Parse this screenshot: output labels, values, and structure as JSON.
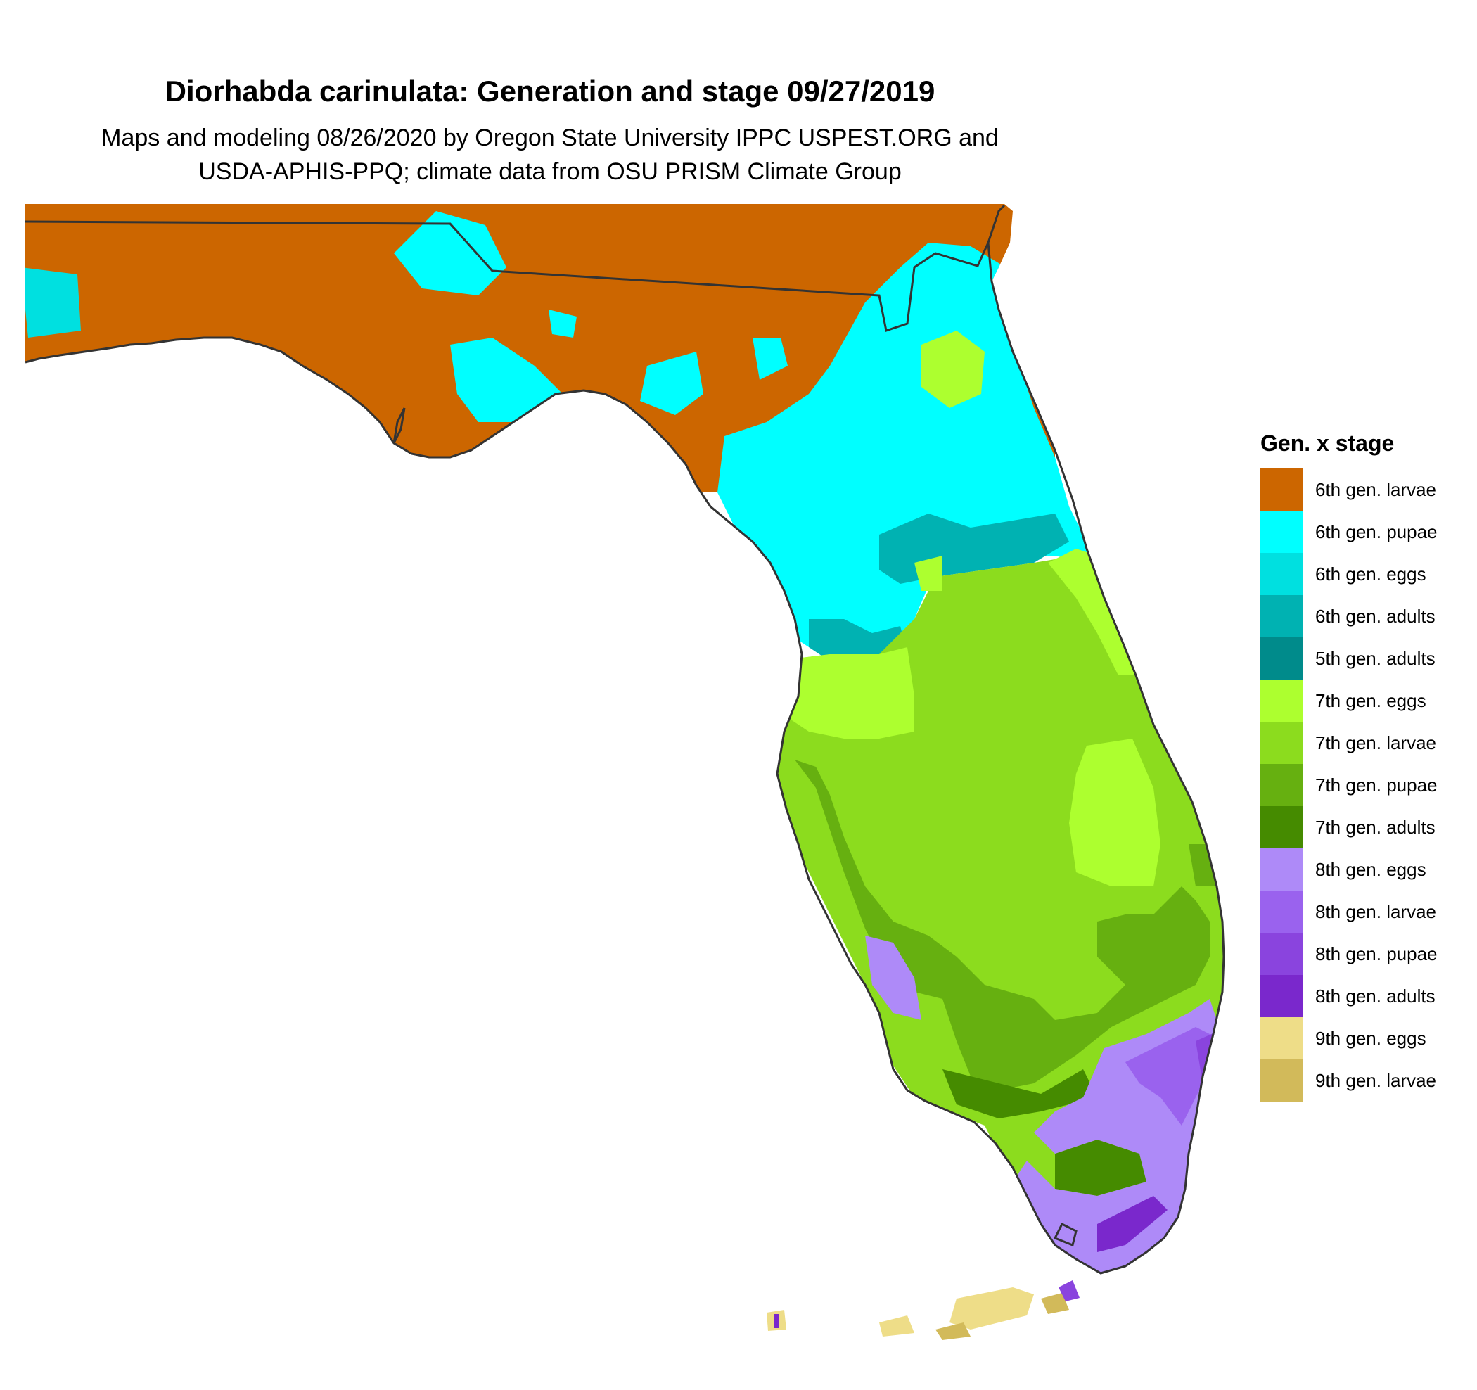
{
  "title": "Diorhabda carinulata: Generation and stage 09/27/2019",
  "subtitle_lines": [
    "Maps and modeling 08/26/2020 by Oregon State University IPPC USPEST.ORG and",
    "USDA-APHIS-PPQ; climate data from OSU PRISM Climate Group"
  ],
  "legend": {
    "title": "Gen. x stage",
    "items": [
      {
        "label": "6th gen. larvae",
        "color": "#CC6600"
      },
      {
        "label": "6th gen. pupae",
        "color": "#00FFFF"
      },
      {
        "label": "6th gen. eggs",
        "color": "#00E0E0"
      },
      {
        "label": "6th gen. adults",
        "color": "#00B2B2"
      },
      {
        "label": "5th gen. adults",
        "color": "#008B8B"
      },
      {
        "label": "7th gen. eggs",
        "color": "#ADFF2F"
      },
      {
        "label": "7th gen. larvae",
        "color": "#8CDC1E"
      },
      {
        "label": "7th gen. pupae",
        "color": "#66B010"
      },
      {
        "label": "7th gen. adults",
        "color": "#458B00"
      },
      {
        "label": "8th gen. eggs",
        "color": "#AE8AF8"
      },
      {
        "label": "8th gen. larvae",
        "color": "#9A62EE"
      },
      {
        "label": "8th gen. pupae",
        "color": "#8A44DE"
      },
      {
        "label": "8th gen. adults",
        "color": "#7A28CC"
      },
      {
        "label": "9th gen. eggs",
        "color": "#EEDD88"
      },
      {
        "label": "9th gen. larvae",
        "color": "#D2BA5A"
      }
    ]
  }
}
